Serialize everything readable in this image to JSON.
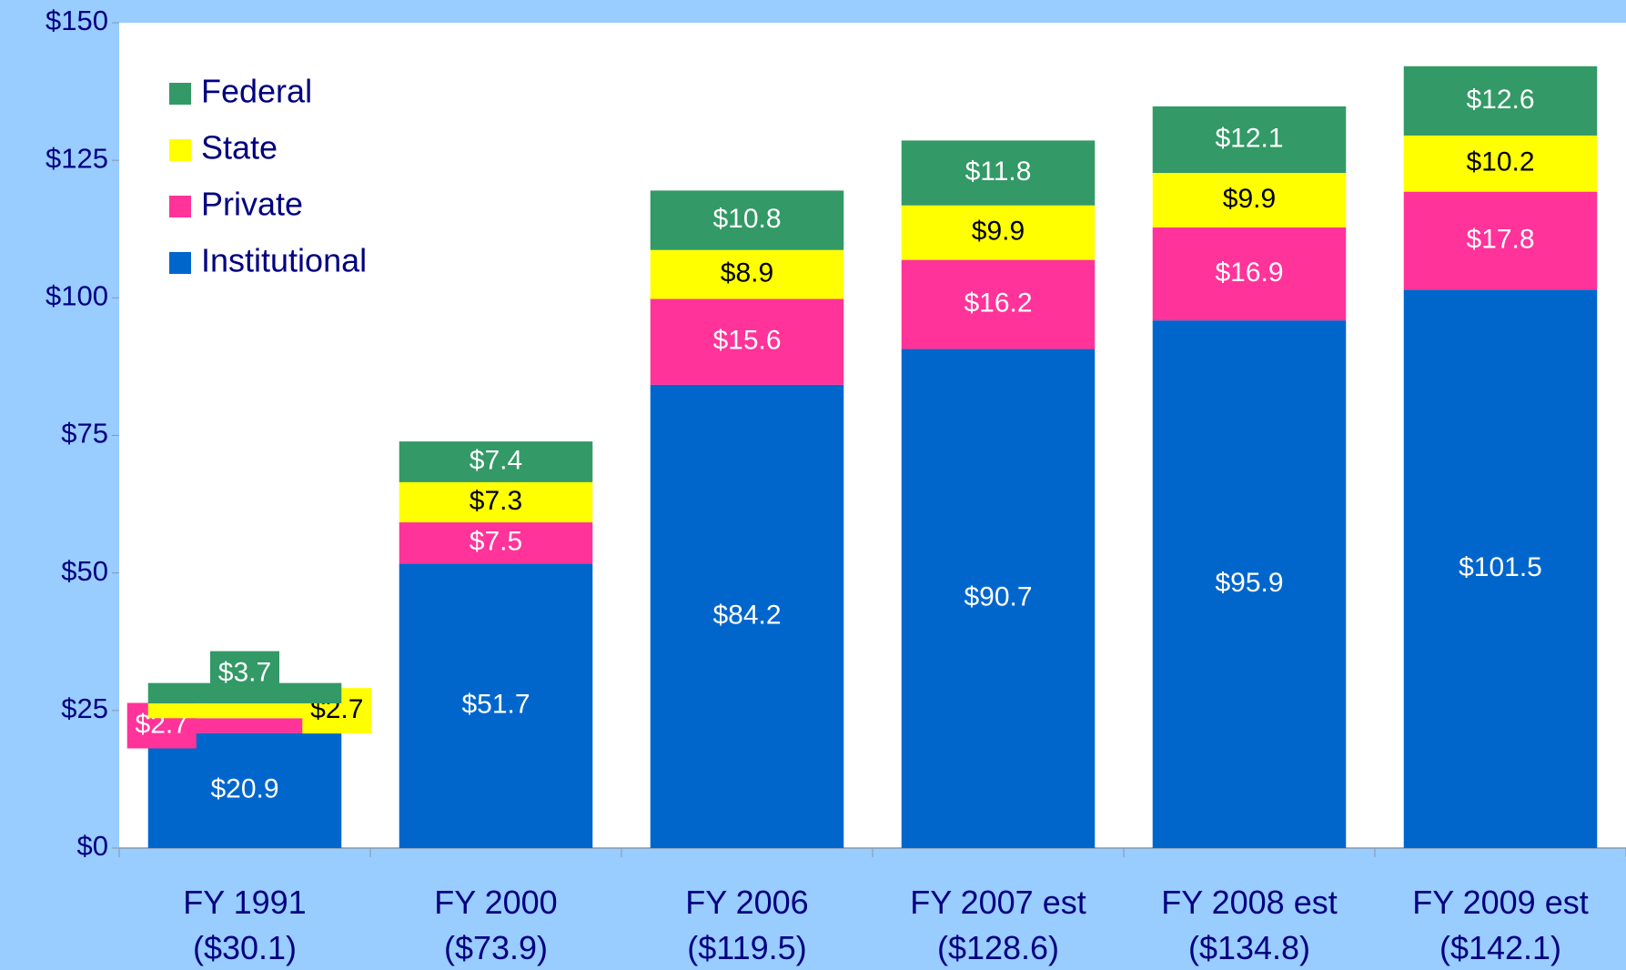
{
  "chart_data": {
    "type": "stacked_bar",
    "categories": [
      "FY 1991\n($30.1)",
      "FY 2000\n($73.9)",
      "FY 2006\n($119.5)",
      "FY 2007 est\n($128.6)",
      "FY 2008 est\n($134.8)",
      "FY 2009 est\n($142.1)"
    ],
    "series": [
      {
        "name": "Institutional",
        "color": "#0066cc",
        "values": [
          20.9,
          51.7,
          84.2,
          90.7,
          95.9,
          101.5
        ],
        "value_labels": [
          "$20.9",
          "$51.7",
          "$84.2",
          "$90.7",
          "$95.9",
          "$101.5"
        ]
      },
      {
        "name": "Private",
        "color": "#ff3399",
        "values": [
          2.7,
          7.5,
          15.6,
          16.2,
          16.9,
          17.8
        ],
        "value_labels": [
          "$2.7",
          "$7.5",
          "$15.6",
          "$16.2",
          "$16.9",
          "$17.8"
        ]
      },
      {
        "name": "State",
        "color": "#ffff00",
        "values": [
          2.7,
          7.3,
          8.9,
          9.9,
          9.9,
          10.2
        ],
        "value_labels": [
          "$2.7",
          "$7.3",
          "$8.9",
          "$9.9",
          "$9.9",
          "$10.2"
        ]
      },
      {
        "name": "Federal",
        "color": "#339966",
        "values": [
          3.7,
          7.4,
          10.8,
          11.8,
          12.1,
          12.6
        ],
        "value_labels": [
          "$3.7",
          "$7.4",
          "$10.8",
          "$11.8",
          "$12.1",
          "$12.6"
        ]
      }
    ],
    "ylim": [
      0,
      150
    ],
    "yticks": [
      {
        "value": 0,
        "label": "$0"
      },
      {
        "value": 25,
        "label": "$25"
      },
      {
        "value": 50,
        "label": "$50"
      },
      {
        "value": 75,
        "label": "$75"
      },
      {
        "value": 100,
        "label": "$100"
      },
      {
        "value": 125,
        "label": "$125"
      },
      {
        "value": 150,
        "label": "$150"
      }
    ],
    "legend": "upper left"
  }
}
